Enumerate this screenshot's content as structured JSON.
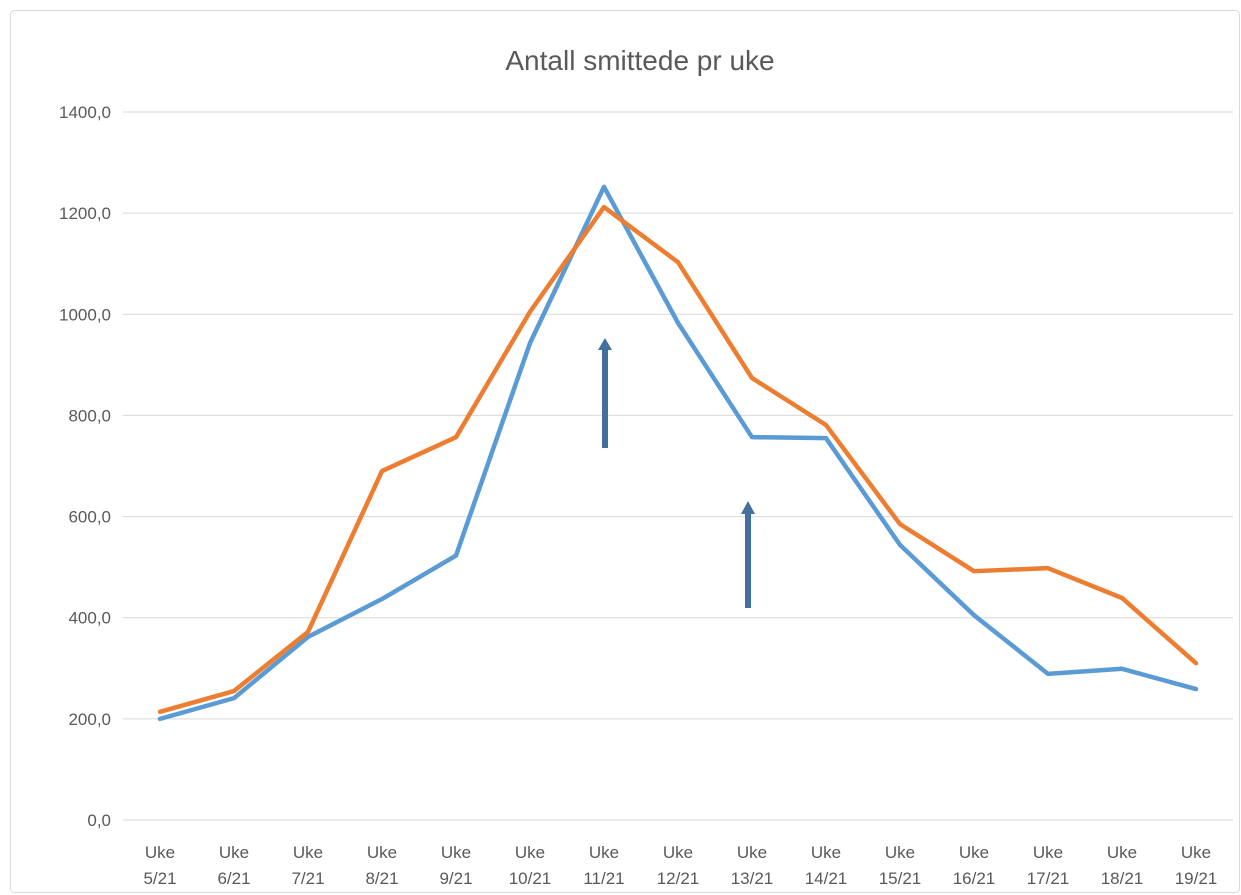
{
  "chart_data": {
    "type": "line",
    "title": "Antall smittede pr uke",
    "categories": [
      "Uke 5/21",
      "Uke 6/21",
      "Uke 7/21",
      "Uke 8/21",
      "Uke 9/21",
      "Uke 10/21",
      "Uke 11/21",
      "Uke 12/21",
      "Uke 13/21",
      "Uke 14/21",
      "Uke 15/21",
      "Uke 16/21",
      "Uke 17/21",
      "Uke 18/21",
      "Uke 19/21"
    ],
    "series": [
      {
        "color": "#5b9bd5",
        "values": [
          200,
          241,
          362,
          437,
          523,
          943,
          1252,
          983,
          757,
          755,
          544,
          405,
          289,
          299,
          259
        ]
      },
      {
        "color": "#ed7d31",
        "values": [
          214,
          255,
          372,
          690,
          757,
          1005,
          1212,
          1103,
          874,
          781,
          585,
          492,
          498,
          439,
          310
        ]
      }
    ],
    "ylim": [
      0,
      1400
    ],
    "yticks": [
      {
        "value": 0,
        "label": "0,0"
      },
      {
        "value": 200,
        "label": "200,0"
      },
      {
        "value": 400,
        "label": "400,0"
      },
      {
        "value": 600,
        "label": "600,0"
      },
      {
        "value": 800,
        "label": "800,0"
      },
      {
        "value": 1000,
        "label": "1000,0"
      },
      {
        "value": 1200,
        "label": "1200,0"
      },
      {
        "value": 1400,
        "label": "1400,0"
      }
    ],
    "grid": true
  }
}
